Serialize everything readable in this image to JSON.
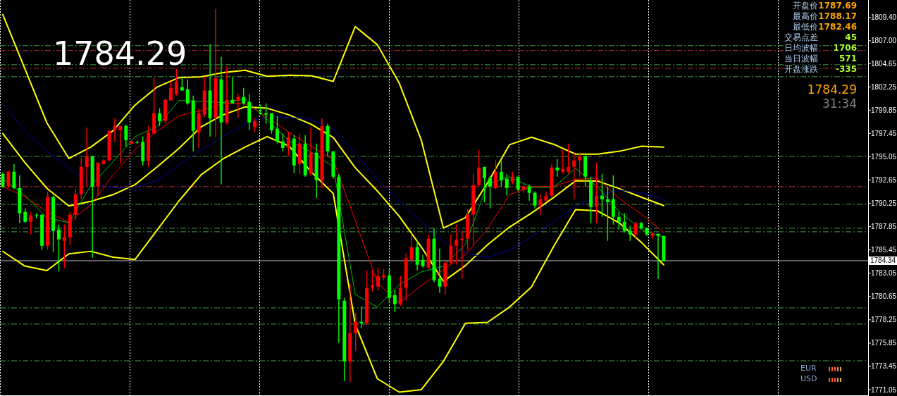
{
  "chart_data": [
    {
      "type": "candlestick",
      "categories": [
        null,
        null,
        null,
        null,
        null,
        null,
        null,
        null,
        null,
        null,
        null,
        null,
        null,
        null,
        null,
        null,
        null,
        null,
        null,
        null,
        null,
        null,
        null,
        null,
        null,
        null,
        null,
        null,
        null,
        null,
        null,
        null,
        null,
        null,
        null,
        null,
        null,
        null,
        null,
        null,
        null,
        null,
        null,
        null,
        null,
        null,
        null,
        null,
        null,
        null,
        null,
        null,
        null,
        null,
        null,
        null,
        null,
        null,
        null,
        null,
        null,
        null,
        null,
        null,
        null,
        null,
        null,
        null,
        null,
        null,
        null,
        null,
        null,
        null,
        null,
        null,
        null,
        null,
        null,
        null,
        null,
        null,
        null,
        null,
        null,
        null,
        null,
        null,
        null,
        null,
        null,
        null,
        null,
        null,
        null,
        null,
        null,
        null,
        null,
        null,
        null,
        null,
        null,
        null,
        null,
        null,
        null,
        null,
        null,
        null,
        null,
        null,
        null,
        null,
        null,
        null,
        null,
        null,
        null,
        null,
        null,
        null,
        null,
        null,
        null,
        null,
        null,
        null,
        null,
        null,
        null,
        null,
        null,
        null,
        null,
        null,
        null,
        null,
        null,
        null,
        null,
        null,
        null,
        null,
        null,
        null,
        null,
        null,
        null,
        null,
        null,
        null,
        null,
        null,
        null
      ],
      "ohlc": [
        [
          1793.29,
          1793.43,
          1791.83,
          1791.98
        ],
        [
          1791.98,
          1793.65,
          1791.83,
          1793.5
        ],
        [
          1793.5,
          1794.3,
          1791.69,
          1791.83
        ],
        [
          1791.83,
          1793.14,
          1788.21,
          1789.22
        ],
        [
          1789.37,
          1789.73,
          1788.21,
          1788.35
        ],
        [
          1788.35,
          1789.37,
          1787.04,
          1789.0
        ],
        [
          1789.08,
          1789.22,
          1788.71,
          1789.08
        ],
        [
          1789.08,
          1789.08,
          1785.45,
          1785.88
        ],
        [
          1785.88,
          1791.47,
          1785.45,
          1790.89
        ],
        [
          1790.89,
          1791.04,
          1785.23,
          1787.41
        ],
        [
          1787.55,
          1788.06,
          1783.27,
          1786.54
        ],
        [
          1786.39,
          1788.06,
          1783.63,
          1786.75
        ],
        [
          1786.75,
          1789.37,
          1785.96,
          1789.08
        ],
        [
          1789.08,
          1791.69,
          1788.57,
          1791.18
        ],
        [
          1791.18,
          1794.96,
          1790.67,
          1794.01
        ],
        [
          1794.01,
          1798.08,
          1791.98,
          1795.1
        ],
        [
          1795.1,
          1795.1,
          1784.65,
          1791.98
        ],
        [
          1791.98,
          1794.45,
          1791.04,
          1794.45
        ],
        [
          1794.3,
          1794.81,
          1794.23,
          1794.67
        ],
        [
          1794.67,
          1797.79,
          1794.59,
          1797.72
        ],
        [
          1797.79,
          1799.02,
          1796.63,
          1798.22
        ],
        [
          1797.79,
          1798.22,
          1794.3,
          1798.22
        ],
        [
          1798.22,
          1798.37,
          1796.12,
          1796.77
        ],
        [
          1796.41,
          1796.7,
          1796.34,
          1796.63
        ],
        [
          1796.56,
          1796.7,
          1796.41,
          1796.56
        ],
        [
          1796.56,
          1797.14,
          1794.16,
          1794.59
        ],
        [
          1794.59,
          1798.22,
          1794.01,
          1797.57
        ],
        [
          1797.43,
          1803.16,
          1797.43,
          1799.53
        ],
        [
          1799.53,
          1800.04,
          1798.22,
          1798.73
        ],
        [
          1798.73,
          1801.06,
          1798.44,
          1800.91
        ],
        [
          1800.84,
          1802.8,
          1800.84,
          1802.15
        ],
        [
          1801.49,
          1804.11,
          1801.35,
          1802.8
        ],
        [
          1802.22,
          1803.16,
          1801.87,
          1801.87
        ],
        [
          1802.0,
          1803.02,
          1800.4,
          1800.55
        ],
        [
          1800.84,
          1801.35,
          1795.61,
          1797.72
        ],
        [
          1797.57,
          1800.04,
          1795.97,
          1799.53
        ],
        [
          1799.39,
          1803.31,
          1799.1,
          1801.87
        ],
        [
          1801.87,
          1806.65,
          1797.14,
          1799.02
        ],
        [
          1799.1,
          1810.28,
          1797.06,
          1803.16
        ],
        [
          1803.02,
          1805.34,
          1792.2,
          1798.59
        ],
        [
          1798.59,
          1804.32,
          1798.37,
          1800.91
        ],
        [
          1800.91,
          1803.31,
          1800.55,
          1800.55
        ],
        [
          1800.84,
          1801.56,
          1799.02,
          1801.2
        ],
        [
          1801.2,
          1802.15,
          1800.4,
          1800.55
        ],
        [
          1800.69,
          1801.49,
          1797.79,
          1798.59
        ],
        [
          1798.08,
          1799.02,
          1797.57,
          1798.73
        ],
        [
          1799.53,
          1800.4,
          1799.39,
          1799.53
        ],
        [
          1799.53,
          1800.55,
          1798.44,
          1799.39
        ],
        [
          1799.53,
          1799.53,
          1797.43,
          1797.79
        ],
        [
          1797.93,
          1799.24,
          1796.41,
          1796.63
        ],
        [
          1796.63,
          1797.43,
          1795.61,
          1795.97
        ],
        [
          1795.97,
          1797.57,
          1795.1,
          1797.06
        ],
        [
          1796.92,
          1797.28,
          1793.36,
          1794.16
        ],
        [
          1794.3,
          1797.43,
          1793.29,
          1796.41
        ],
        [
          1796.41,
          1797.28,
          1793.0,
          1793.14
        ],
        [
          1793.29,
          1798.08,
          1793.14,
          1795.47
        ],
        [
          1795.47,
          1796.41,
          1790.82,
          1792.63
        ],
        [
          1792.63,
          1799.02,
          1791.83,
          1798.22
        ],
        [
          1798.22,
          1798.44,
          1795.1,
          1795.61
        ],
        [
          1795.61,
          1795.61,
          1792.78,
          1793.0
        ],
        [
          1793.0,
          1793.29,
          1775.86,
          1780.37
        ],
        [
          1780.22,
          1780.51,
          1771.94,
          1773.97
        ],
        [
          1773.97,
          1781.96,
          1771.8,
          1776.87
        ],
        [
          1776.87,
          1778.98,
          1775.07,
          1778.04
        ],
        [
          1778.04,
          1779.64,
          1777.39,
          1777.89
        ],
        [
          1777.89,
          1783.34,
          1777.75,
          1781.53
        ],
        [
          1781.53,
          1783.34,
          1781.16,
          1781.82
        ],
        [
          1781.67,
          1783.63,
          1781.31,
          1782.76
        ],
        [
          1782.62,
          1783.49,
          1782.33,
          1782.83
        ],
        [
          1782.83,
          1783.49,
          1780.0,
          1780.51
        ],
        [
          1780.8,
          1781.31,
          1779.06,
          1779.86
        ],
        [
          1779.86,
          1782.76,
          1779.71,
          1781.53
        ],
        [
          1781.53,
          1785.08,
          1780.22,
          1784.58
        ],
        [
          1784.43,
          1787.12,
          1784.14,
          1785.74
        ],
        [
          1785.74,
          1786.46,
          1783.34,
          1783.92
        ],
        [
          1784.43,
          1784.94,
          1783.63,
          1783.78
        ],
        [
          1783.63,
          1787.04,
          1783.49,
          1786.61
        ],
        [
          1786.61,
          1787.7,
          1782.11,
          1782.33
        ],
        [
          1782.47,
          1785.59,
          1781.02,
          1781.67
        ],
        [
          1781.67,
          1784.29,
          1780.87,
          1784.14
        ],
        [
          1784.14,
          1787.04,
          1783.92,
          1785.88
        ],
        [
          1785.88,
          1788.06,
          1783.92,
          1786.46
        ],
        [
          1786.46,
          1787.41,
          1782.47,
          1786.61
        ],
        [
          1786.61,
          1789.66,
          1785.45,
          1789.08
        ],
        [
          1789.08,
          1793.29,
          1785.96,
          1792.13
        ],
        [
          1792.13,
          1795.76,
          1791.98,
          1793.94
        ],
        [
          1794.01,
          1794.01,
          1790.38,
          1792.85
        ],
        [
          1792.85,
          1793.0,
          1789.73,
          1791.98
        ],
        [
          1791.83,
          1794.67,
          1791.69,
          1793.5
        ],
        [
          1793.5,
          1794.67,
          1791.98,
          1792.63
        ],
        [
          1792.78,
          1793.29,
          1791.04,
          1791.83
        ],
        [
          1792.49,
          1793.5,
          1792.2,
          1793.0
        ],
        [
          1793.0,
          1793.0,
          1791.54,
          1791.69
        ],
        [
          1791.62,
          1792.2,
          1791.33,
          1791.98
        ],
        [
          1791.98,
          1792.2,
          1790.53,
          1791.33
        ],
        [
          1791.33,
          1791.47,
          1789.73,
          1790.02
        ],
        [
          1790.02,
          1791.18,
          1789.08,
          1790.67
        ],
        [
          1790.53,
          1791.47,
          1790.38,
          1791.04
        ],
        [
          1791.04,
          1794.3,
          1790.89,
          1793.94
        ],
        [
          1793.94,
          1794.81,
          1793.0,
          1793.65
        ],
        [
          1793.5,
          1795.76,
          1793.29,
          1793.79
        ],
        [
          1793.5,
          1796.41,
          1793.29,
          1794.01
        ],
        [
          1794.01,
          1795.47,
          1790.67,
          1794.67
        ],
        [
          1794.67,
          1795.47,
          1793.0,
          1795.1
        ],
        [
          1795.1,
          1795.32,
          1791.98,
          1793.0
        ],
        [
          1792.49,
          1793.0,
          1788.21,
          1789.87
        ],
        [
          1789.87,
          1794.45,
          1788.21,
          1791.04
        ],
        [
          1791.04,
          1793.29,
          1788.86,
          1790.67
        ],
        [
          1790.67,
          1791.98,
          1786.39,
          1790.38
        ],
        [
          1790.67,
          1793.14,
          1788.06,
          1788.86
        ],
        [
          1788.86,
          1789.37,
          1787.55,
          1788.35
        ],
        [
          1788.35,
          1789.22,
          1787.26,
          1787.41
        ],
        [
          1787.41,
          1787.92,
          1786.39,
          1787.04
        ],
        [
          1787.04,
          1788.35,
          1786.54,
          1788.21
        ],
        [
          1788.21,
          1788.35,
          1787.55,
          1787.7
        ],
        [
          1787.7,
          1787.77,
          1786.9,
          1787.04
        ],
        [
          1786.9,
          1787.26,
          1786.61,
          1787.12
        ],
        [
          1787.12,
          1787.12,
          1782.47,
          1786.9
        ],
        [
          1786.9,
          1786.9,
          1784.29,
          1784.29
        ],
        null,
        null,
        null,
        null,
        null,
        null,
        null,
        null,
        null,
        null,
        null,
        null,
        null,
        null,
        null,
        null,
        null,
        null,
        null,
        null,
        null,
        null,
        null,
        null,
        null,
        null,
        null,
        null,
        null,
        null,
        null,
        null,
        null,
        null,
        null,
        null
      ],
      "ylim": [
        1770.4,
        1811.2
      ],
      "yticks": [
        {
          "value": 1809.4,
          "label": "1809.40"
        },
        {
          "value": 1807.0,
          "label": "1807.00"
        },
        {
          "value": 1804.65,
          "label": "1804.65"
        },
        {
          "value": 1802.25,
          "label": "1802.25"
        },
        {
          "value": 1799.85,
          "label": "1799.85"
        },
        {
          "value": 1797.45,
          "label": "1797.45"
        },
        {
          "value": 1795.05,
          "label": "1795.05"
        },
        {
          "value": 1792.65,
          "label": "1792.65"
        },
        {
          "value": 1790.25,
          "label": "1790.25"
        },
        {
          "value": 1787.85,
          "label": "1787.85"
        },
        {
          "value": 1785.45,
          "label": "1785.45"
        },
        {
          "value": 1783.05,
          "label": "1783.05"
        },
        {
          "value": 1780.65,
          "label": "1780.65"
        },
        {
          "value": 1778.25,
          "label": "1778.25"
        },
        {
          "value": 1775.85,
          "label": "1775.85"
        },
        {
          "value": 1773.45,
          "label": "1773.45"
        },
        {
          "value": 1771.05,
          "label": "1771.05"
        }
      ],
      "tick_labels": "y",
      "ref_lines": [
        {
          "axis": "y",
          "value": 1806.5,
          "color": "#40a040",
          "line_style": "dashed"
        },
        {
          "axis": "y",
          "value": 1805.99,
          "color": "#c03030",
          "line_style": "dashed"
        },
        {
          "axis": "y",
          "value": 1804.53,
          "color": "#40a040",
          "line_style": "dashed"
        },
        {
          "axis": "y",
          "value": 1804.17,
          "color": "#c03030",
          "line_style": "dashed"
        },
        {
          "axis": "y",
          "value": 1803.3,
          "color": "#40a040",
          "line_style": "dashed"
        },
        {
          "axis": "y",
          "value": 1795.09,
          "color": "#40a040",
          "line_style": "dashed"
        },
        {
          "axis": "y",
          "value": 1791.97,
          "color": "#c03030",
          "line_style": "dashed"
        },
        {
          "axis": "y",
          "value": 1790.15,
          "color": "#40a040",
          "line_style": "dashed"
        },
        {
          "axis": "y",
          "value": 1787.69,
          "color": "#40a040",
          "line_style": "dashed"
        },
        {
          "axis": "y",
          "value": 1787.32,
          "color": "#40a040",
          "line_style": "dashed"
        },
        {
          "axis": "y",
          "value": 1784.34,
          "label": "1784.34",
          "color": "#c0c0c0",
          "line_style": "solid"
        },
        {
          "axis": "y",
          "value": 1779.48,
          "color": "#40a040",
          "line_style": "dashed"
        },
        {
          "axis": "y",
          "value": 1777.81,
          "color": "#40a040",
          "line_style": "dashed"
        },
        {
          "axis": "y",
          "value": 1774.03,
          "color": "#40a040",
          "line_style": "dashed"
        }
      ],
      "annotations": [
        "1784.29",
        "开盘价",
        "1787.69",
        "最高价",
        "1788.17",
        "最低价",
        "1782.46",
        "交易点差",
        "45",
        "日均波幅",
        "1706",
        "当日波幅",
        "571",
        "开盘涨跌",
        "-335",
        "1784.29",
        "31:34",
        "EUR",
        "USD"
      ]
    },
    {
      "type": "line",
      "color": "#ffff00",
      "ylim": [
        1770.4,
        1811.2
      ],
      "tick_labels": false,
      "categories": [
        null,
        null,
        null,
        null,
        null,
        null,
        null,
        null,
        null,
        null,
        null,
        null,
        null,
        null,
        null,
        null,
        null,
        null,
        null,
        null,
        null,
        null,
        null,
        null,
        null,
        null,
        null,
        null,
        null,
        null,
        null
      ],
      "values": [
        1809.7,
        1804.13,
        1798.55,
        1794.87,
        1796.05,
        1797.72,
        1800.37,
        1802.23,
        1803.2,
        1803.29,
        1803.72,
        1803.96,
        1803.34,
        1803.45,
        1803.4,
        1802.82,
        1808.46,
        1806.6,
        1802.61,
        1796.74,
        1787.71,
        1788.78,
        1792.34,
        1796.29,
        1797.06,
        1796.34,
        1795.32,
        1795.32,
        1795.62,
        1796.14,
        1796.05
      ]
    },
    {
      "type": "line",
      "color": "#ffff00",
      "ylim": [
        1770.4,
        1811.2
      ],
      "tick_labels": false,
      "categories": [
        null,
        null,
        null,
        null,
        null,
        null,
        null,
        null,
        null,
        null,
        null,
        null,
        null,
        null,
        null,
        null,
        null,
        null,
        null,
        null,
        null,
        null,
        null,
        null,
        null,
        null,
        null,
        null,
        null,
        null,
        null
      ],
      "values": [
        1797.43,
        1794.46,
        1791.8,
        1789.99,
        1790.46,
        1791.14,
        1792.17,
        1793.99,
        1795.92,
        1798.13,
        1799.37,
        1800.19,
        1800.05,
        1799.36,
        1798.39,
        1797.04,
        1793.91,
        1791.53,
        1788.9,
        1785.75,
        1782.21,
        1783.84,
        1785.97,
        1787.8,
        1789.25,
        1790.85,
        1792.57,
        1792.55,
        1791.75,
        1790.87,
        1790.02
      ]
    },
    {
      "type": "line",
      "color": "#ffff00",
      "ylim": [
        1770.4,
        1811.2
      ],
      "tick_labels": false,
      "categories": [
        null,
        null,
        null,
        null,
        null,
        null,
        null,
        null,
        null,
        null,
        null,
        null,
        null,
        null,
        null,
        null,
        null,
        null,
        null,
        null,
        null,
        null,
        null,
        null,
        null,
        null,
        null,
        null,
        null,
        null,
        null
      ],
      "values": [
        1785.3,
        1783.79,
        1783.32,
        1785.05,
        1785.31,
        1784.7,
        1784.46,
        1787.49,
        1790.51,
        1793.19,
        1794.83,
        1796.05,
        1797.13,
        1796.14,
        1793.49,
        1791.26,
        1777.78,
        1772.18,
        1770.8,
        1771.06,
        1773.97,
        1777.89,
        1777.99,
        1779.56,
        1781.64,
        1785.79,
        1789.6,
        1789.47,
        1788.21,
        1786.2,
        1783.92
      ]
    },
    {
      "type": "line",
      "color": "#0000a0",
      "ylim": [
        1770.4,
        1811.2
      ],
      "tick_labels": false,
      "categories": [
        null,
        null,
        null,
        null,
        null,
        null,
        null,
        null,
        null,
        null,
        null,
        null,
        null,
        null,
        null,
        null,
        null,
        null,
        null,
        null,
        null,
        null,
        null,
        null,
        null,
        null,
        null,
        null,
        null,
        null,
        null
      ],
      "values": [
        1800.55,
        1797.7,
        1795.6,
        1793.92,
        1792.27,
        1791.86,
        1791.89,
        1792.59,
        1794.19,
        1795.73,
        1797.13,
        1798.48,
        1799.22,
        1799.09,
        1798.91,
        1797.87,
        1795.37,
        1792.75,
        1790.43,
        1788.38,
        1786.3,
        1785.1,
        1784.65,
        1785.42,
        1786.81,
        1788.31,
        1789.92,
        1791.02,
        1791.63,
        1791.32,
        1790.67
      ]
    },
    {
      "type": "line",
      "color": "#ff0000",
      "ylim": [
        1770.4,
        1811.2
      ],
      "tick_labels": false,
      "categories": [
        null,
        null,
        null,
        null,
        null,
        null,
        null,
        null,
        null,
        null,
        null,
        null,
        null,
        null,
        null,
        null,
        null,
        null,
        null,
        null,
        null,
        null,
        null,
        null,
        null,
        null,
        null,
        null,
        null,
        null,
        null
      ],
      "values": [
        1791.98,
        1790.93,
        1789.37,
        1788.32,
        1790.09,
        1793.13,
        1795.79,
        1797.66,
        1799.28,
        1799.8,
        1800.55,
        1800.53,
        1799.16,
        1797.55,
        1796.13,
        1794.74,
        1788.46,
        1782.08,
        1779.96,
        1781.78,
        1783.4,
        1784.97,
        1787.61,
        1791.15,
        1791.98,
        1791.98,
        1792.74,
        1792.82,
        1790.7,
        1789.12,
        1787.26
      ]
    },
    {
      "type": "line",
      "color": "#00c000",
      "ylim": [
        1770.4,
        1811.2
      ],
      "tick_labels": false,
      "categories": [
        null,
        null,
        null,
        null,
        null,
        null,
        null,
        null,
        null,
        null,
        null,
        null,
        null,
        null,
        null,
        null,
        null,
        null,
        null,
        null,
        null,
        null,
        null,
        null,
        null,
        null,
        null,
        null,
        null,
        null,
        null
      ],
      "values": [
        1792.78,
        1791.09,
        1788.76,
        1788.26,
        1792.11,
        1794.52,
        1797.12,
        1798.15,
        1800.84,
        1800.76,
        1800.62,
        1801.02,
        1798.86,
        1796.66,
        1795.53,
        1794.02,
        1780.86,
        1779.57,
        1781.89,
        1783.19,
        1783.78,
        1786.02,
        1792.22,
        1793.0,
        1791.91,
        1791.88,
        1793.85,
        1791.94,
        1789.34,
        1787.54,
        1786.75
      ]
    }
  ]
}
